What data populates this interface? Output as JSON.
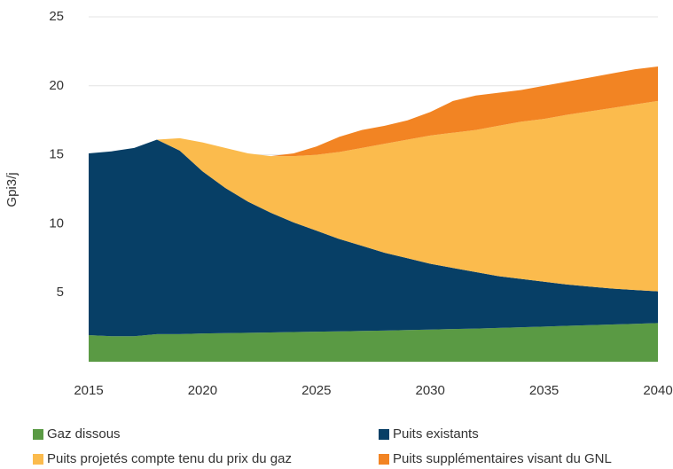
{
  "chart_data": {
    "type": "stacked_area",
    "ylabel": "Gpi3/j",
    "x": [
      2015,
      2016,
      2017,
      2018,
      2019,
      2020,
      2021,
      2022,
      2023,
      2024,
      2025,
      2026,
      2027,
      2028,
      2029,
      2030,
      2031,
      2032,
      2033,
      2034,
      2035,
      2036,
      2037,
      2038,
      2039,
      2040
    ],
    "xlim": [
      2015,
      2040
    ],
    "xticks": [
      2015,
      2020,
      2025,
      2030,
      2035,
      2040
    ],
    "ylim": [
      0,
      25
    ],
    "yticks": [
      5,
      10,
      15,
      20,
      25
    ],
    "grid": true,
    "legend": "bottom",
    "series": [
      {
        "name": "Gaz dissous",
        "color": "#5a9a44",
        "values": [
          1.93,
          1.85,
          1.85,
          2.0,
          2.0,
          2.05,
          2.07,
          2.1,
          2.12,
          2.15,
          2.18,
          2.2,
          2.23,
          2.26,
          2.3,
          2.33,
          2.37,
          2.4,
          2.45,
          2.5,
          2.55,
          2.6,
          2.65,
          2.7,
          2.75,
          2.8
        ]
      },
      {
        "name": "Puits existants",
        "color": "#073f66",
        "values": [
          13.17,
          13.4,
          13.65,
          14.1,
          13.3,
          11.75,
          10.53,
          9.5,
          8.68,
          7.95,
          7.32,
          6.7,
          6.17,
          5.64,
          5.2,
          4.77,
          4.43,
          4.1,
          3.75,
          3.5,
          3.25,
          3.0,
          2.8,
          2.6,
          2.45,
          2.3
        ]
      },
      {
        "name": "Puits projetés compte tenu du prix du gaz",
        "color": "#fbbb4d",
        "values": [
          0,
          0,
          0,
          0,
          0.9,
          2.1,
          2.9,
          3.5,
          4.1,
          4.8,
          5.5,
          6.3,
          7.1,
          7.9,
          8.6,
          9.3,
          9.8,
          10.3,
          10.9,
          11.4,
          11.8,
          12.3,
          12.7,
          13.1,
          13.45,
          13.8
        ]
      },
      {
        "name": "Puits supplémentaires visant du GNL",
        "color": "#f28423",
        "values": [
          0,
          0,
          0,
          0,
          0,
          0,
          0,
          0,
          0,
          0.2,
          0.6,
          1.1,
          1.3,
          1.3,
          1.4,
          1.7,
          2.3,
          2.5,
          2.4,
          2.3,
          2.4,
          2.4,
          2.45,
          2.5,
          2.55,
          2.5
        ]
      }
    ]
  }
}
